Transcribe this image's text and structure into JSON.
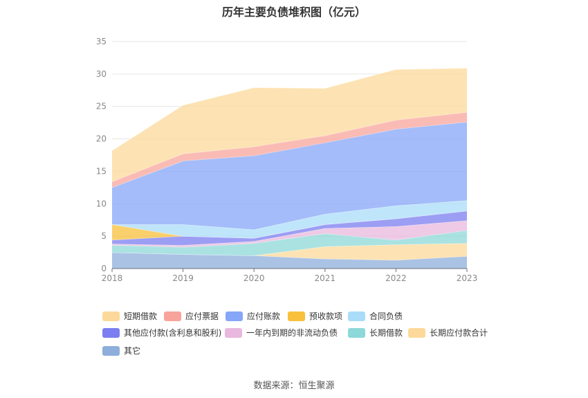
{
  "chart_data": {
    "type": "area",
    "stacked": true,
    "title": "历年主要负债堆积图（亿元）",
    "categories": [
      "2018",
      "2019",
      "2020",
      "2021",
      "2022",
      "2023"
    ],
    "ylim": [
      0,
      35
    ],
    "yticks": [
      0,
      5,
      10,
      15,
      20,
      25,
      30,
      35
    ],
    "grid": true,
    "legend_position": "bottom",
    "series": [
      {
        "name": "其它",
        "color": "#8eaedb",
        "values": [
          2.5,
          2.2,
          2.0,
          1.5,
          1.3,
          1.9
        ]
      },
      {
        "name": "长期应付款合计",
        "color": "#fcd99a",
        "values": [
          0.0,
          0.0,
          0.0,
          1.9,
          2.4,
          2.0
        ]
      },
      {
        "name": "长期借款",
        "color": "#8dd8d8",
        "values": [
          1.1,
          1.1,
          1.9,
          2.0,
          0.7,
          2.0
        ]
      },
      {
        "name": "一年内到期的非流动负债",
        "color": "#e8b8de",
        "values": [
          0.2,
          0.3,
          0.3,
          0.8,
          2.1,
          1.5
        ]
      },
      {
        "name": "其他应付款(含利息和股利)",
        "color": "#7b7ef0",
        "values": [
          0.6,
          1.4,
          0.5,
          0.6,
          1.2,
          1.5
        ]
      },
      {
        "name": "预收款项",
        "color": "#f8c03c",
        "values": [
          2.4,
          0.0,
          0.0,
          0.0,
          0.0,
          0.0
        ]
      },
      {
        "name": "合同负债",
        "color": "#a9dcf9",
        "values": [
          0.0,
          1.8,
          1.3,
          1.6,
          2.0,
          1.6
        ]
      },
      {
        "name": "应付账款",
        "color": "#86a6f7",
        "values": [
          5.7,
          9.8,
          11.4,
          11.0,
          11.8,
          12.1
        ]
      },
      {
        "name": "应付票据",
        "color": "#f8a49c",
        "values": [
          0.9,
          1.1,
          1.4,
          1.1,
          1.4,
          1.5
        ]
      },
      {
        "name": "短期借款",
        "color": "#fcd99a",
        "values": [
          4.8,
          7.5,
          9.1,
          7.3,
          7.8,
          6.8
        ]
      }
    ],
    "legend_order": [
      "短期借款",
      "应付票据",
      "应付账款",
      "预收款项",
      "合同负债",
      "其他应付款(含利息和股利)",
      "一年内到期的非流动负债",
      "长期借款",
      "长期应付款合计",
      "其它"
    ],
    "legend_colors": {
      "短期借款": "#fcd99a",
      "应付票据": "#f8a49c",
      "应付账款": "#86a6f7",
      "预收款项": "#f8c03c",
      "合同负债": "#a9dcf9",
      "其他应付款(含利息和股利)": "#7b7ef0",
      "一年内到期的非流动负债": "#e8b8de",
      "长期借款": "#8dd8d8",
      "长期应付款合计": "#fcd99a",
      "其它": "#8eaedb"
    }
  },
  "source": "数据来源：恒生聚源"
}
